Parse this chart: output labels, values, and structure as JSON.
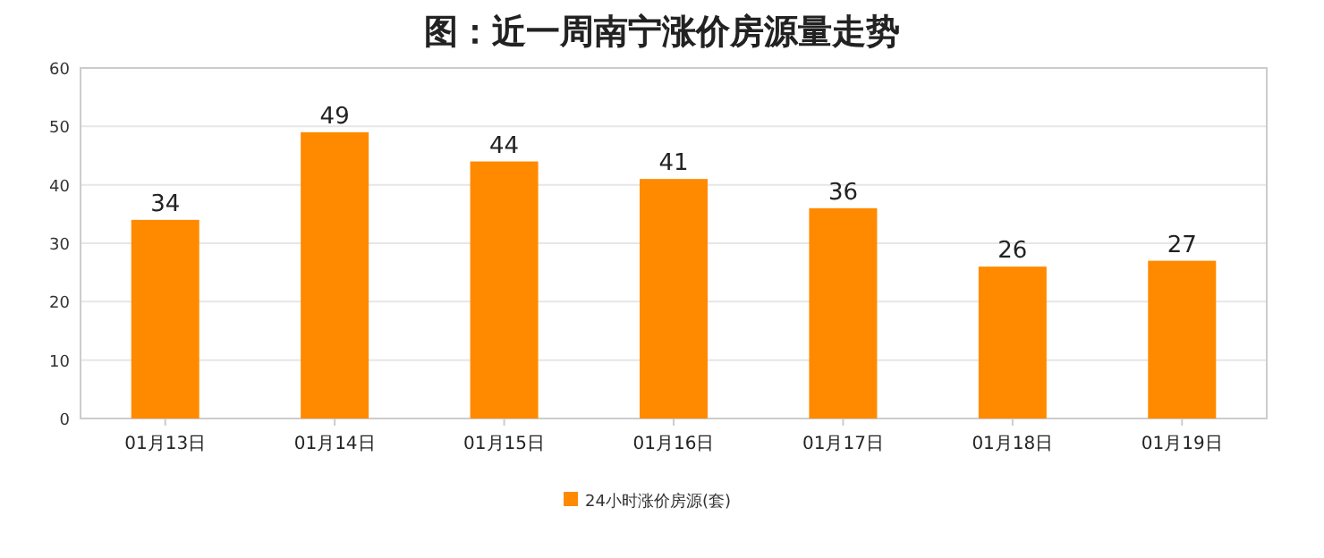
{
  "chart_data": {
    "type": "bar",
    "title": "图：近一周南宁涨价房源量走势",
    "categories": [
      "01月13日",
      "01月14日",
      "01月15日",
      "01月16日",
      "01月17日",
      "01月18日",
      "01月19日"
    ],
    "series": [
      {
        "name": "24小时涨价房源(套)",
        "color": "#ff8a00",
        "values": [
          34,
          49,
          44,
          41,
          36,
          26,
          27
        ]
      }
    ],
    "ylim": [
      0,
      60
    ],
    "yticks": [
      0,
      10,
      20,
      30,
      40,
      50,
      60
    ],
    "grid": "y",
    "legend": "bottom",
    "data_labels": true
  }
}
